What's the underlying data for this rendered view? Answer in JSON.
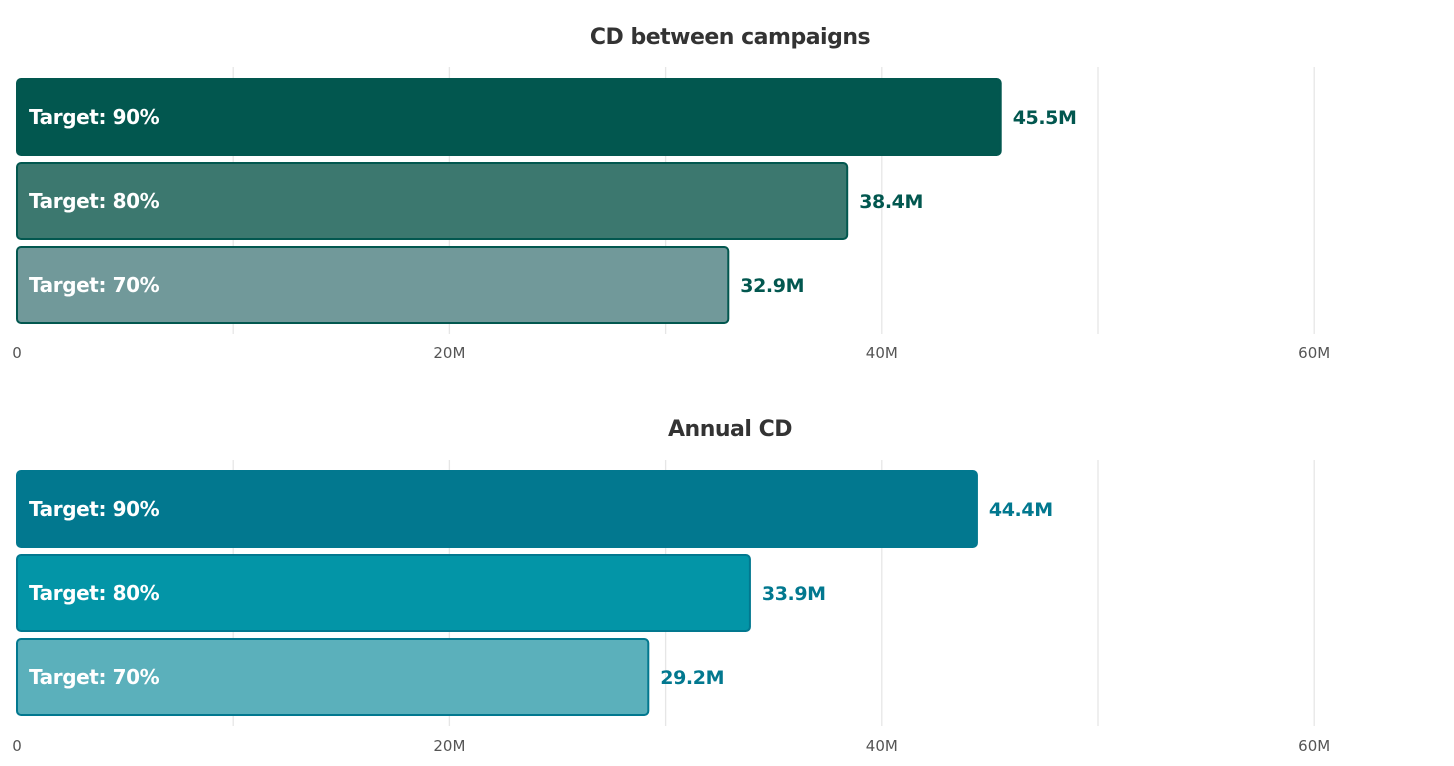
{
  "chart_data": [
    {
      "type": "bar",
      "orientation": "horizontal",
      "title": "CD between campaigns",
      "categories": [
        "Target: 90%",
        "Target: 80%",
        "Target: 70%"
      ],
      "values": [
        45.5,
        38.4,
        32.9
      ],
      "value_labels": [
        "45.5M",
        "38.4M",
        "32.9M"
      ],
      "unit": "M",
      "xlim": [
        0,
        66
      ],
      "xticks": [
        0,
        20,
        40,
        60
      ],
      "xtick_labels": [
        "0",
        "20M",
        "40M",
        "60M"
      ],
      "grid": true,
      "legend": false,
      "colors": {
        "bars": [
          "#02574f",
          "#3c786f",
          "#71999a"
        ],
        "outline": "#02574f",
        "label": "#02574f"
      }
    },
    {
      "type": "bar",
      "orientation": "horizontal",
      "title": "Annual CD",
      "categories": [
        "Target: 90%",
        "Target: 80%",
        "Target: 70%"
      ],
      "values": [
        44.4,
        33.9,
        29.2
      ],
      "value_labels": [
        "44.4M",
        "33.9M",
        "29.2M"
      ],
      "unit": "M",
      "xlim": [
        0,
        66
      ],
      "xticks": [
        0,
        20,
        40,
        60
      ],
      "xtick_labels": [
        "0",
        "20M",
        "40M",
        "60M"
      ],
      "grid": true,
      "legend": false,
      "colors": {
        "bars": [
          "#02788f",
          "#0395a7",
          "#5bb0bb"
        ],
        "outline": "#02788f",
        "label": "#02788f"
      }
    }
  ]
}
